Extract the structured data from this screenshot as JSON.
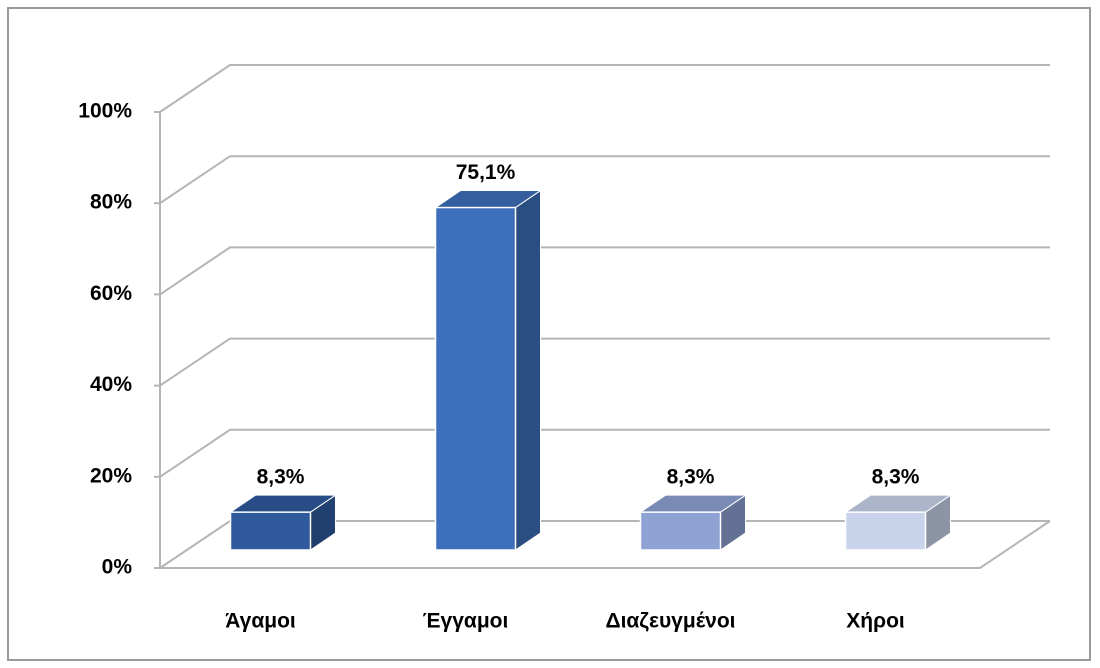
{
  "chart_data": {
    "type": "bar3d",
    "categories": [
      "Άγαμοι",
      "Έγγαμοι",
      "Διαζευγμένοι",
      "Χήροι"
    ],
    "values": [
      8.3,
      75.1,
      8.3,
      8.3
    ],
    "value_labels": [
      "8,3%",
      "75,1%",
      "8,3%",
      "8,3%"
    ],
    "colors": [
      "#2f5a9e",
      "#3d6fba",
      "#8ea2d4",
      "#c9d4ec"
    ],
    "ylim": [
      0,
      100
    ],
    "yticks": [
      {
        "value": 0,
        "label": "0%"
      },
      {
        "value": 20,
        "label": "20%"
      },
      {
        "value": 40,
        "label": "40%"
      },
      {
        "value": 60,
        "label": "60%"
      },
      {
        "value": 80,
        "label": "80%"
      },
      {
        "value": 100,
        "label": "100%"
      }
    ],
    "grid": true
  }
}
